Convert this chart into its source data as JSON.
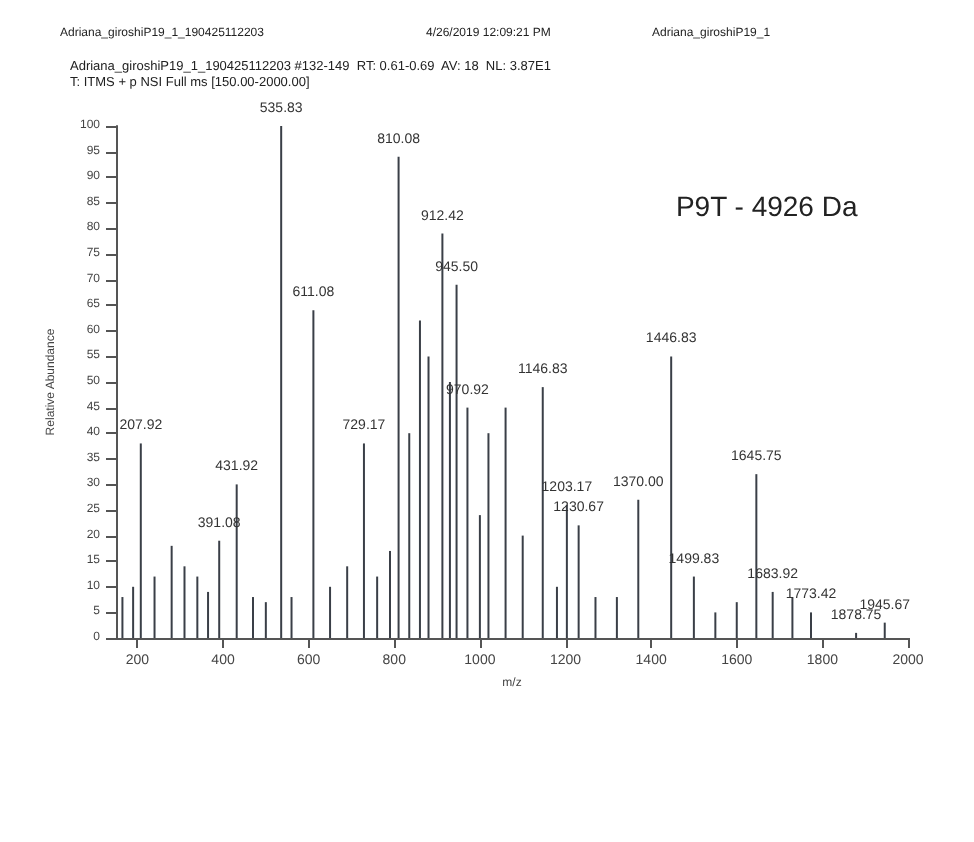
{
  "chart_data": {
    "type": "bar",
    "title": "Adriana_giroshiP19_1_190425112203 #132-149  RT: 0.61-0.69  AV: 18  NL: 3.87E1",
    "subtitle": "T: ITMS + p NSI Full ms [150.00-2000.00]",
    "xlabel": "m/z",
    "ylabel": "Relative Abundance",
    "x": [
      165,
      190,
      207.92,
      240,
      280,
      310,
      340,
      365,
      391.08,
      431.92,
      470,
      500,
      535.83,
      560,
      611.08,
      650,
      690,
      729.17,
      760,
      790,
      810.08,
      835,
      860,
      880,
      912.42,
      930,
      945.5,
      970.92,
      1000,
      1020,
      1060,
      1100,
      1146.83,
      1180,
      1203.17,
      1230.67,
      1270,
      1320,
      1370,
      1446.83,
      1499.83,
      1550,
      1600,
      1645.75,
      1683.92,
      1730,
      1773.42,
      1878.75,
      1945.67
    ],
    "values": [
      8,
      10,
      38,
      12,
      18,
      14,
      12,
      9,
      19,
      30,
      8,
      7,
      100,
      8,
      64,
      10,
      14,
      38,
      12,
      17,
      94,
      40,
      62,
      55,
      79,
      50,
      69,
      45,
      24,
      40,
      45,
      20,
      49,
      10,
      26,
      22,
      8,
      8,
      27,
      55,
      12,
      5,
      7,
      32,
      9,
      8,
      5,
      1,
      3
    ],
    "color": "#3a3f47",
    "xlim": [
      150,
      2000
    ],
    "xticks": [
      200,
      400,
      600,
      800,
      1000,
      1200,
      1400,
      1600,
      1800,
      2000
    ],
    "ylim": [
      0,
      100
    ],
    "yticks": [
      0,
      5,
      10,
      15,
      20,
      25,
      30,
      35,
      40,
      45,
      50,
      55,
      60,
      65,
      70,
      75,
      80,
      85,
      90,
      95,
      100
    ],
    "grid": false,
    "annotations": [
      "Adriana_giroshiP19_1_190425112203",
      "4/26/2019 12:09:21 PM",
      "Adriana_giroshiP19_1",
      "P9T - 4926 Da",
      {
        "text": "207.92",
        "x": 207.92,
        "y": 38
      },
      {
        "text": "391.08",
        "x": 391.08,
        "y": 19
      },
      {
        "text": "431.92",
        "x": 431.92,
        "y": 30
      },
      {
        "text": "535.83",
        "x": 535.83,
        "y": 100
      },
      {
        "text": "611.08",
        "x": 611.08,
        "y": 64
      },
      {
        "text": "729.17",
        "x": 729.17,
        "y": 38
      },
      {
        "text": "810.08",
        "x": 810.08,
        "y": 94
      },
      {
        "text": "912.42",
        "x": 912.42,
        "y": 79
      },
      {
        "text": "945.50",
        "x": 945.5,
        "y": 69
      },
      {
        "text": "970.92",
        "x": 970.92,
        "y": 45
      },
      {
        "text": "1146.83",
        "x": 1146.83,
        "y": 49
      },
      {
        "text": "1203.17",
        "x": 1203.17,
        "y": 26
      },
      {
        "text": "1230.67",
        "x": 1230.67,
        "y": 22
      },
      {
        "text": "1370.00",
        "x": 1370,
        "y": 27
      },
      {
        "text": "1446.83",
        "x": 1446.83,
        "y": 55
      },
      {
        "text": "1499.83",
        "x": 1499.83,
        "y": 12
      },
      {
        "text": "1645.75",
        "x": 1645.75,
        "y": 32
      },
      {
        "text": "1683.92",
        "x": 1683.92,
        "y": 9
      },
      {
        "text": "1773.42",
        "x": 1773.42,
        "y": 5
      },
      {
        "text": "1878.75",
        "x": 1878.75,
        "y": 1
      },
      {
        "text": "1945.67",
        "x": 1945.67,
        "y": 3
      }
    ]
  }
}
